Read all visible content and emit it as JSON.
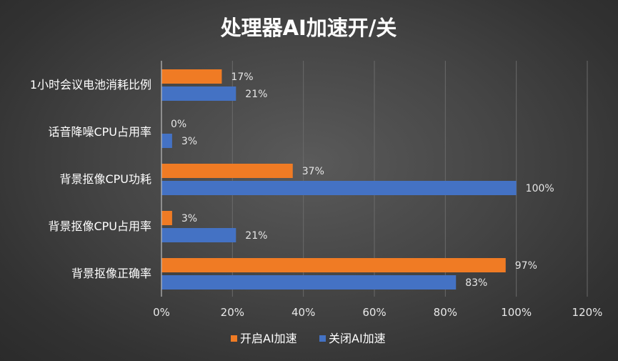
{
  "chart_data": {
    "type": "bar",
    "orientation": "horizontal",
    "title": "处理器AI加速开/关",
    "categories": [
      "1小时会议电池消耗比例",
      "话音降噪CPU占用率",
      "背景抠像CPU功耗",
      "背景抠像CPU占用率",
      "背景抠像正确率"
    ],
    "series": [
      {
        "name": "开启AI加速",
        "color": "#f07b24",
        "values": [
          17,
          0,
          37,
          3,
          97
        ],
        "labels": [
          "17%",
          "0%",
          "37%",
          "3%",
          "97%"
        ]
      },
      {
        "name": "关闭AI加速",
        "color": "#4472c4",
        "values": [
          21,
          3,
          100,
          21,
          83
        ],
        "labels": [
          "21%",
          "3%",
          "100%",
          "21%",
          "83%"
        ]
      }
    ],
    "xlim": [
      0,
      120
    ],
    "xticks": [
      0,
      20,
      40,
      60,
      80,
      100,
      120
    ],
    "xtick_labels": [
      "0%",
      "20%",
      "40%",
      "60%",
      "80%",
      "100%",
      "120%"
    ],
    "grid": true,
    "legend_position": "bottom"
  }
}
